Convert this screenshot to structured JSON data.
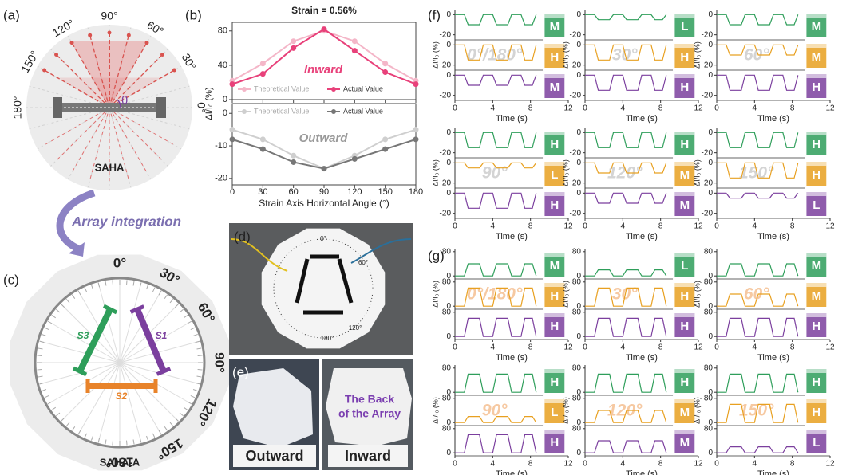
{
  "panel_labels": [
    "(a)",
    "(b)",
    "(c)",
    "(d)",
    "(e)",
    "(f)",
    "(g)"
  ],
  "panel_a": {
    "angles": [
      "90°",
      "60°",
      "30°",
      "0°",
      "180°",
      "150°",
      "120°"
    ],
    "theta": "θ",
    "name": "SAHA"
  },
  "arrow_text": "Array integration",
  "panel_c": {
    "angles": [
      "0°",
      "30°",
      "60°",
      "90°",
      "120°",
      "150°",
      "180°"
    ],
    "sensors": [
      "S1",
      "S2",
      "S3"
    ],
    "name": "SAHA-A"
  },
  "panel_d": {
    "dial": [
      "0°",
      "60°",
      "120°",
      "180°"
    ]
  },
  "panel_e": {
    "outward": "Outward",
    "inward": "Inward",
    "back_text": [
      "The Back",
      "of the Array"
    ]
  },
  "chart_data": [
    {
      "type": "line",
      "title": "Strain = 0.56%",
      "xlabel": "Strain Axis Horizontal Angle (°)",
      "ylabel": "ΔI/I₀ (%)",
      "x": [
        0,
        30,
        60,
        90,
        120,
        150,
        180
      ],
      "xlim": [
        0,
        180
      ],
      "xticks": [
        0,
        30,
        60,
        90,
        120,
        150,
        180
      ],
      "panels": [
        {
          "annotation": "Inward",
          "annotation_color": "#e8417a",
          "ylim": [
            0,
            90
          ],
          "yticks": [
            0,
            40,
            80
          ],
          "series": [
            {
              "name": "Theoretical Value",
              "color": "#f4b6c8",
              "values": [
                22,
                42,
                68,
                80,
                68,
                42,
                22
              ]
            },
            {
              "name": "Actual Value",
              "color": "#e8417a",
              "values": [
                18,
                30,
                60,
                82,
                57,
                32,
                18
              ]
            }
          ]
        },
        {
          "annotation": "Outward",
          "annotation_color": "#9a9a9a",
          "ylim": [
            -22,
            3
          ],
          "yticks": [
            -20,
            -10,
            0
          ],
          "series": [
            {
              "name": "Theoretical Value",
              "color": "#cfcfcf",
              "values": [
                -5,
                -8,
                -13,
                -17,
                -13,
                -8,
                -5
              ]
            },
            {
              "name": "Actual Value",
              "color": "#777777",
              "values": [
                -8,
                -11,
                -15,
                -17,
                -14,
                -11,
                -8
              ]
            }
          ]
        }
      ]
    },
    {
      "type": "line",
      "xlabel": "Time (s)",
      "ylabel": "ΔI/I₀ (%)",
      "xlim": [
        0,
        12
      ],
      "xticks": [
        0,
        4,
        8,
        12
      ],
      "ylim": [
        -25,
        5
      ],
      "yticks": [
        0,
        -20
      ],
      "label_color": "#d4d4d4",
      "colors": [
        "#2e9e5a",
        "#e8a020",
        "#7b3f9e"
      ],
      "x": [
        0,
        1,
        1.4,
        2.6,
        3,
        4,
        4.4,
        5.6,
        6,
        7,
        7.4,
        8.2,
        8.6
      ],
      "plots": [
        {
          "angle": "0°/180°",
          "traces": [
            {
              "level": "M",
              "values": [
                0,
                0,
                -10,
                -10,
                0,
                0,
                -10,
                -10,
                0,
                0,
                -10,
                -10,
                0
              ]
            },
            {
              "level": "H",
              "values": [
                0,
                0,
                -15,
                -15,
                0,
                0,
                -15,
                -15,
                0,
                0,
                -15,
                -15,
                0
              ]
            },
            {
              "level": "M",
              "values": [
                0,
                0,
                -10,
                -10,
                0,
                0,
                -10,
                -10,
                0,
                0,
                -10,
                -10,
                0
              ]
            }
          ]
        },
        {
          "angle": "30°",
          "traces": [
            {
              "level": "L",
              "values": [
                0,
                0,
                -5,
                -5,
                0,
                0,
                -5,
                -5,
                0,
                0,
                -5,
                -5,
                0
              ]
            },
            {
              "level": "H",
              "values": [
                0,
                0,
                -15,
                -15,
                0,
                0,
                -15,
                -15,
                0,
                0,
                -15,
                -15,
                0
              ]
            },
            {
              "level": "H",
              "values": [
                0,
                0,
                -15,
                -15,
                0,
                0,
                -15,
                -15,
                0,
                0,
                -15,
                -15,
                0
              ]
            }
          ]
        },
        {
          "angle": "60°",
          "traces": [
            {
              "level": "M",
              "values": [
                0,
                0,
                -10,
                -10,
                0,
                0,
                -10,
                -10,
                0,
                0,
                -10,
                -10,
                0
              ]
            },
            {
              "level": "M",
              "values": [
                0,
                0,
                -10,
                -10,
                0,
                0,
                -10,
                -10,
                0,
                0,
                -10,
                -10,
                0
              ]
            },
            {
              "level": "H",
              "values": [
                0,
                0,
                -15,
                -15,
                0,
                0,
                -15,
                -15,
                0,
                0,
                -15,
                -15,
                0
              ]
            }
          ]
        },
        {
          "angle": "90°",
          "traces": [
            {
              "level": "H",
              "values": [
                0,
                0,
                -15,
                -15,
                0,
                0,
                -15,
                -15,
                0,
                0,
                -15,
                -15,
                0
              ]
            },
            {
              "level": "L",
              "values": [
                0,
                0,
                -5,
                -5,
                0,
                0,
                -5,
                -5,
                0,
                0,
                -5,
                -5,
                0
              ]
            },
            {
              "level": "H",
              "values": [
                0,
                0,
                -15,
                -15,
                0,
                0,
                -15,
                -15,
                0,
                0,
                -15,
                -15,
                0
              ]
            }
          ]
        },
        {
          "angle": "120°",
          "traces": [
            {
              "level": "H",
              "values": [
                0,
                0,
                -15,
                -15,
                0,
                0,
                -15,
                -15,
                0,
                0,
                -15,
                -15,
                0
              ]
            },
            {
              "level": "M",
              "values": [
                0,
                0,
                -10,
                -10,
                0,
                0,
                -10,
                -10,
                0,
                0,
                -10,
                -10,
                0
              ]
            },
            {
              "level": "M",
              "values": [
                0,
                0,
                -10,
                -10,
                0,
                0,
                -10,
                -10,
                0,
                0,
                -10,
                -10,
                0
              ]
            }
          ]
        },
        {
          "angle": "150°",
          "traces": [
            {
              "level": "H",
              "values": [
                0,
                0,
                -15,
                -15,
                0,
                0,
                -15,
                -15,
                0,
                0,
                -15,
                -15,
                0
              ]
            },
            {
              "level": "H",
              "values": [
                0,
                0,
                -15,
                -15,
                0,
                0,
                -15,
                -15,
                0,
                0,
                -15,
                -15,
                0
              ]
            },
            {
              "level": "L",
              "values": [
                0,
                0,
                -5,
                -5,
                0,
                0,
                -5,
                -5,
                0,
                0,
                -5,
                -5,
                0
              ]
            }
          ]
        }
      ]
    },
    {
      "type": "line",
      "xlabel": "Time (s)",
      "ylabel": "ΔI/I₀ (%)",
      "xlim": [
        0,
        12
      ],
      "xticks": [
        0,
        4,
        8,
        12
      ],
      "ylim": [
        -10,
        90
      ],
      "yticks": [
        0,
        80
      ],
      "label_color": "#f6c9a2",
      "colors": [
        "#2e9e5a",
        "#e8a020",
        "#7b3f9e"
      ],
      "x": [
        0,
        1,
        1.4,
        2.6,
        3,
        4,
        4.4,
        5.6,
        6,
        7,
        7.4,
        8.2,
        8.6
      ],
      "plots": [
        {
          "angle": "0°/180°",
          "traces": [
            {
              "level": "M",
              "values": [
                0,
                0,
                40,
                40,
                0,
                0,
                40,
                40,
                0,
                0,
                40,
                40,
                0
              ]
            },
            {
              "level": "H",
              "values": [
                0,
                0,
                60,
                60,
                0,
                0,
                60,
                60,
                0,
                0,
                60,
                60,
                0
              ]
            },
            {
              "level": "H",
              "values": [
                0,
                0,
                60,
                60,
                0,
                0,
                60,
                60,
                0,
                0,
                60,
                60,
                0
              ]
            }
          ]
        },
        {
          "angle": "30°",
          "traces": [
            {
              "level": "L",
              "values": [
                0,
                0,
                20,
                20,
                0,
                0,
                20,
                20,
                0,
                0,
                20,
                20,
                0
              ]
            },
            {
              "level": "H",
              "values": [
                0,
                0,
                60,
                60,
                0,
                0,
                60,
                60,
                0,
                0,
                60,
                60,
                0
              ]
            },
            {
              "level": "H",
              "values": [
                0,
                0,
                60,
                60,
                0,
                0,
                60,
                60,
                0,
                0,
                60,
                60,
                0
              ]
            }
          ]
        },
        {
          "angle": "60°",
          "traces": [
            {
              "level": "M",
              "values": [
                0,
                0,
                40,
                40,
                0,
                0,
                40,
                40,
                0,
                0,
                40,
                40,
                0
              ]
            },
            {
              "level": "M",
              "values": [
                0,
                0,
                40,
                40,
                0,
                0,
                40,
                40,
                0,
                0,
                40,
                40,
                0
              ]
            },
            {
              "level": "H",
              "values": [
                0,
                0,
                60,
                60,
                0,
                0,
                60,
                60,
                0,
                0,
                60,
                60,
                0
              ]
            }
          ]
        },
        {
          "angle": "90°",
          "traces": [
            {
              "level": "H",
              "values": [
                0,
                0,
                60,
                60,
                0,
                0,
                60,
                60,
                0,
                0,
                60,
                60,
                0
              ]
            },
            {
              "level": "L",
              "values": [
                0,
                0,
                20,
                20,
                0,
                0,
                20,
                20,
                0,
                0,
                20,
                20,
                0
              ]
            },
            {
              "level": "H",
              "values": [
                0,
                0,
                60,
                60,
                0,
                0,
                60,
                60,
                0,
                0,
                60,
                60,
                0
              ]
            }
          ]
        },
        {
          "angle": "120°",
          "traces": [
            {
              "level": "H",
              "values": [
                0,
                0,
                60,
                60,
                0,
                0,
                60,
                60,
                0,
                0,
                60,
                60,
                0
              ]
            },
            {
              "level": "M",
              "values": [
                0,
                0,
                40,
                40,
                0,
                0,
                40,
                40,
                0,
                0,
                40,
                40,
                0
              ]
            },
            {
              "level": "M",
              "values": [
                0,
                0,
                40,
                40,
                0,
                0,
                40,
                40,
                0,
                0,
                40,
                40,
                0
              ]
            }
          ]
        },
        {
          "angle": "150°",
          "traces": [
            {
              "level": "H",
              "values": [
                0,
                0,
                60,
                60,
                0,
                0,
                60,
                60,
                0,
                0,
                60,
                60,
                0
              ]
            },
            {
              "level": "H",
              "values": [
                0,
                0,
                60,
                60,
                0,
                0,
                60,
                60,
                0,
                0,
                60,
                60,
                0
              ]
            },
            {
              "level": "L",
              "values": [
                0,
                0,
                20,
                20,
                0,
                0,
                20,
                20,
                0,
                0,
                20,
                20,
                0
              ]
            }
          ]
        }
      ]
    }
  ]
}
